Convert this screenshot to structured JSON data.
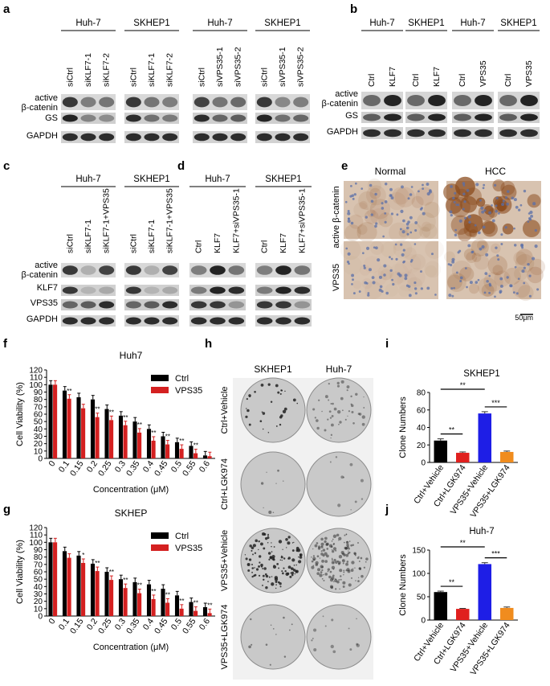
{
  "panel_labels": {
    "a": "a",
    "b": "b",
    "c": "c",
    "d": "d",
    "e": "e",
    "f": "f",
    "g": "g",
    "h": "h",
    "i": "i",
    "j": "j"
  },
  "blot_rows": {
    "active": "active",
    "beta_catenin": "β-catenin",
    "gs": "GS",
    "gapdh": "GAPDH",
    "klf7": "KLF7",
    "vps35": "VPS35"
  },
  "panel_a": {
    "groups": [
      {
        "cell": "Huh-7",
        "lanes": [
          "siCtrl",
          "siKLF7-1",
          "siKLF7-2"
        ]
      },
      {
        "cell": "SKHEP1",
        "lanes": [
          "siCtrl",
          "siKLF7-1",
          "siKLF7-2"
        ]
      },
      {
        "cell": "Huh-7",
        "lanes": [
          "siCtrl",
          "siVPS35-1",
          "siVPS35-2"
        ]
      },
      {
        "cell": "SKHEP1",
        "lanes": [
          "siCtrl",
          "siVPS35-1",
          "siVPS35-2"
        ]
      }
    ]
  },
  "panel_b": {
    "groups": [
      {
        "cell": "Huh-7",
        "lanes": [
          "Ctrl",
          "KLF7"
        ]
      },
      {
        "cell": "SKHEP1",
        "lanes": [
          "Ctrl",
          "KLF7"
        ]
      },
      {
        "cell": "Huh-7",
        "lanes": [
          "Ctrl",
          "VPS35"
        ]
      },
      {
        "cell": "SKHEP1",
        "lanes": [
          "Ctrl",
          "VPS35"
        ]
      }
    ]
  },
  "panel_c": {
    "groups": [
      {
        "cell": "Huh-7",
        "lanes": [
          "siCtrl",
          "siKLF7-1",
          "siKLF7-1+VPS35"
        ]
      },
      {
        "cell": "SKHEP1",
        "lanes": [
          "siCtrl",
          "siKLF7-1",
          "siKLF7-1+VPS35"
        ]
      }
    ]
  },
  "panel_d": {
    "groups": [
      {
        "cell": "Huh-7",
        "lanes": [
          "Ctrl",
          "KLF7",
          "KLF7+siVPS35-1"
        ]
      },
      {
        "cell": "SKHEP1",
        "lanes": [
          "Ctrl",
          "KLF7",
          "KLF7+siVPS35-1"
        ]
      }
    ]
  },
  "panel_e": {
    "columns": [
      "Normal",
      "HCC"
    ],
    "rows": [
      "active β-catenin",
      "VPS35"
    ],
    "scale_bar": "50μm",
    "colors": {
      "tissue": "#d8c3b0",
      "nuclei": "#5a6fa8",
      "stain": "#8a4a1c"
    }
  },
  "panel_h": {
    "columns": [
      "SKHEP1",
      "Huh-7"
    ],
    "rows": [
      "Ctrl+Vehicle",
      "Ctrl+LGK974",
      "VPS35+Vehicle",
      "VPS35+LGK974"
    ]
  },
  "chart_data": [
    {
      "panel": "f",
      "type": "bar",
      "title": "Huh7",
      "xlabel": "Concentration (μM)",
      "ylabel": "Cell Viability (%)",
      "ylim": [
        0,
        120
      ],
      "yticks": [
        0,
        10,
        20,
        30,
        40,
        50,
        60,
        70,
        80,
        90,
        100,
        110,
        120
      ],
      "categories": [
        "0",
        "0.1",
        "0.15",
        "0.2",
        "0.25",
        "0.3",
        "0.35",
        "0.4",
        "0.45",
        "0.5",
        "0.55",
        "0.6"
      ],
      "legend_position": "top-right",
      "series": [
        {
          "name": "Ctrl",
          "color": "#000000",
          "values": [
            100,
            92,
            83,
            80,
            67,
            58,
            50,
            40,
            30,
            22,
            17,
            4
          ]
        },
        {
          "name": "VPS35",
          "color": "#d42020",
          "values": [
            100,
            81,
            68,
            56,
            52,
            45,
            35,
            24,
            19,
            13,
            7,
            3
          ]
        }
      ],
      "significance": [
        "",
        "**",
        "",
        "**",
        "**",
        "**",
        "**",
        "**",
        "**",
        "**",
        "**",
        ""
      ]
    },
    {
      "panel": "g",
      "type": "bar",
      "title": "SKHEP",
      "xlabel": "Concentration (μM)",
      "ylabel": "Cell Viability (%)",
      "ylim": [
        0,
        120
      ],
      "yticks": [
        0,
        10,
        20,
        30,
        40,
        50,
        60,
        70,
        80,
        90,
        100,
        110,
        120
      ],
      "categories": [
        "0",
        "0.1",
        "0.15",
        "0.2",
        "0.25",
        "0.3",
        "0.35",
        "0.4",
        "0.45",
        "0.5",
        "0.55",
        "0.6"
      ],
      "legend_position": "top-right",
      "series": [
        {
          "name": "Ctrl",
          "color": "#000000",
          "values": [
            100,
            88,
            82,
            71,
            60,
            50,
            46,
            43,
            37,
            28,
            19,
            12
          ]
        },
        {
          "name": "VPS35",
          "color": "#d42020",
          "values": [
            100,
            79,
            72,
            61,
            49,
            38,
            31,
            23,
            18,
            10,
            7,
            4
          ]
        }
      ],
      "significance": [
        "",
        "",
        "*",
        "**",
        "**",
        "**",
        "**",
        "**",
        "**",
        "**",
        "**",
        "**"
      ]
    },
    {
      "panel": "i",
      "type": "bar",
      "title": "SKHEP1",
      "ylabel": "Clone Numbers",
      "ylim": [
        0,
        80
      ],
      "yticks": [
        0,
        20,
        40,
        60,
        80
      ],
      "categories": [
        "Ctrl+Vehicle",
        "Ctrl+LGK974",
        "VPS35+Vehicle",
        "VPS35+LGK974"
      ],
      "values": [
        25,
        11,
        56,
        12
      ],
      "errors": [
        2,
        1,
        2,
        1
      ],
      "colors": [
        "#000000",
        "#e0201e",
        "#1e1ee6",
        "#f08c1e"
      ],
      "significance": [
        {
          "from": 0,
          "to": 1,
          "label": "**"
        },
        {
          "from": 0,
          "to": 2,
          "label": "**"
        },
        {
          "from": 2,
          "to": 3,
          "label": "***"
        }
      ]
    },
    {
      "panel": "j",
      "type": "bar",
      "title": "Huh-7",
      "ylabel": "Clone Numbers",
      "ylim": [
        0,
        150
      ],
      "yticks": [
        0,
        50,
        100,
        150
      ],
      "categories": [
        "Ctrl+Vehicle",
        "Ctrl+LGK974",
        "VPS35+Vehicle",
        "VPS35+LGK974"
      ],
      "values": [
        60,
        24,
        120,
        26
      ],
      "errors": [
        2,
        1,
        3,
        2
      ],
      "colors": [
        "#000000",
        "#e0201e",
        "#1e1ee6",
        "#f08c1e"
      ],
      "significance": [
        {
          "from": 0,
          "to": 1,
          "label": "**"
        },
        {
          "from": 0,
          "to": 2,
          "label": "**"
        },
        {
          "from": 2,
          "to": 3,
          "label": "***"
        }
      ]
    }
  ]
}
